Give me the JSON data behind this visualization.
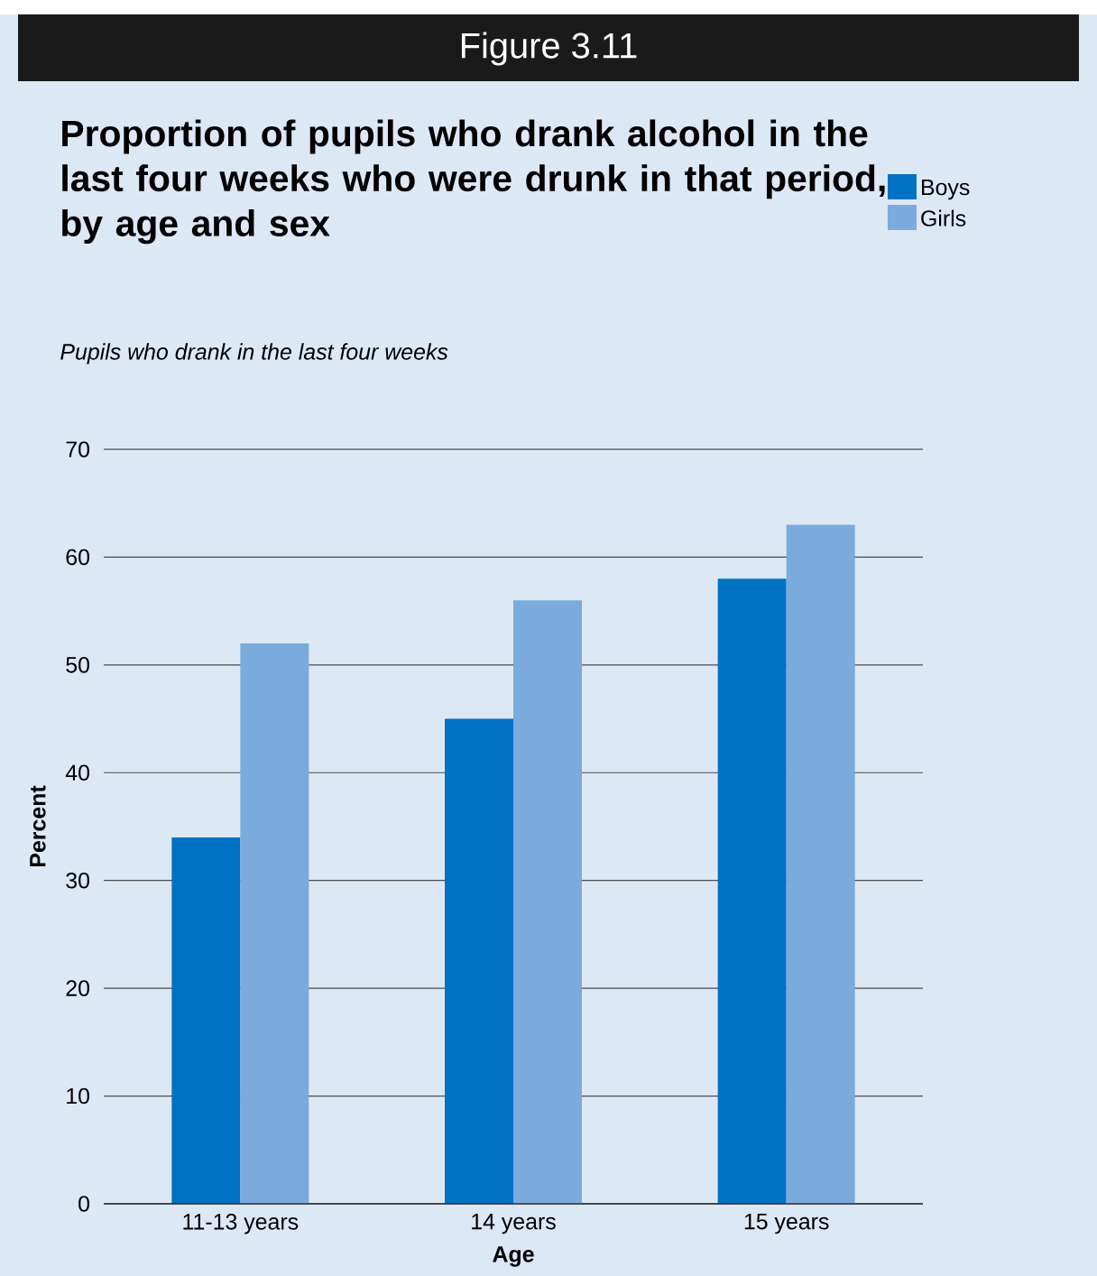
{
  "chart_data": {
    "type": "bar",
    "title": "Proportion of pupils who drank alcohol in the last four weeks who were drunk in that period, by age and sex",
    "subtitle": "Pupils who drank in the last four weeks",
    "annotations": [
      "Figure 3.11"
    ],
    "xlabel": "Age",
    "ylabel": "Percent",
    "categories": [
      "11-13 years",
      "14 years",
      "15 years"
    ],
    "series": [
      {
        "name": "Boys",
        "color": "#0071c3",
        "values": [
          34,
          45,
          58
        ]
      },
      {
        "name": "Girls",
        "color": "#7aabdc",
        "values": [
          52,
          56,
          63
        ]
      }
    ],
    "ylim": [
      0,
      70
    ],
    "yticks": [
      0,
      10,
      20,
      30,
      40,
      50,
      60,
      70
    ],
    "grid": "y",
    "legend": "top right"
  }
}
